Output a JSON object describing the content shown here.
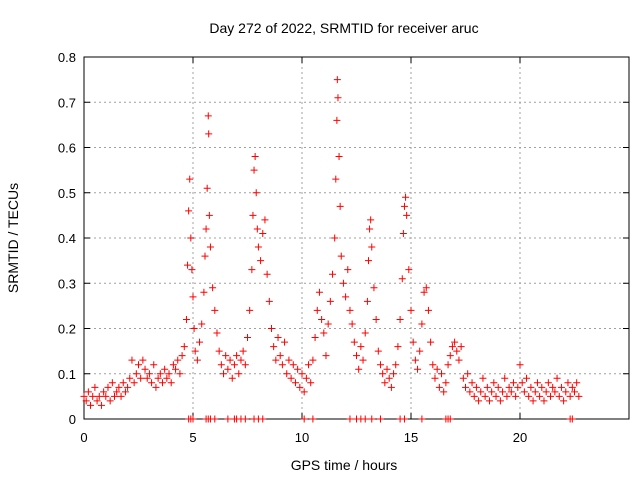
{
  "chart_data": {
    "type": "scatter",
    "title": "Day 272 of 2022, SRMTID for receiver aruc",
    "xlabel": "GPS time / hours",
    "ylabel": "SRMTID / TECUs",
    "xlim": [
      0,
      25
    ],
    "ylim": [
      0,
      0.8
    ],
    "xticks": [
      0,
      5,
      10,
      15,
      20
    ],
    "xtick_labels": [
      "0",
      "5",
      "10",
      "15",
      "20"
    ],
    "yticks": [
      0,
      0.1,
      0.2,
      0.3,
      0.4,
      0.5,
      0.6,
      0.7,
      0.8
    ],
    "ytick_labels": [
      "0",
      "0.1",
      "0.2",
      "0.3",
      "0.4",
      "0.5",
      "0.6",
      "0.7",
      "0.8"
    ],
    "grid": true,
    "marker": "plus",
    "color": "#ff0000",
    "series": [
      {
        "name": "SRMTID",
        "points": [
          [
            0.0,
            0.05
          ],
          [
            0.1,
            0.04
          ],
          [
            0.2,
            0.06
          ],
          [
            0.3,
            0.03
          ],
          [
            0.4,
            0.05
          ],
          [
            0.5,
            0.07
          ],
          [
            0.6,
            0.04
          ],
          [
            0.7,
            0.05
          ],
          [
            0.8,
            0.03
          ],
          [
            0.9,
            0.06
          ],
          [
            1.0,
            0.05
          ],
          [
            1.1,
            0.07
          ],
          [
            1.2,
            0.04
          ],
          [
            1.3,
            0.08
          ],
          [
            1.4,
            0.05
          ],
          [
            1.5,
            0.06
          ],
          [
            1.6,
            0.07
          ],
          [
            1.7,
            0.05
          ],
          [
            1.8,
            0.08
          ],
          [
            1.9,
            0.06
          ],
          [
            2.0,
            0.07
          ],
          [
            2.1,
            0.09
          ],
          [
            2.2,
            0.13
          ],
          [
            2.3,
            0.08
          ],
          [
            2.4,
            0.1
          ],
          [
            2.5,
            0.12
          ],
          [
            2.6,
            0.09
          ],
          [
            2.7,
            0.13
          ],
          [
            2.8,
            0.11
          ],
          [
            2.9,
            0.09
          ],
          [
            3.0,
            0.1
          ],
          [
            3.1,
            0.08
          ],
          [
            3.2,
            0.12
          ],
          [
            3.3,
            0.07
          ],
          [
            3.4,
            0.09
          ],
          [
            3.5,
            0.1
          ],
          [
            3.6,
            0.08
          ],
          [
            3.7,
            0.11
          ],
          [
            3.8,
            0.09
          ],
          [
            3.9,
            0.1
          ],
          [
            4.0,
            0.08
          ],
          [
            4.1,
            0.12
          ],
          [
            4.2,
            0.11
          ],
          [
            4.3,
            0.13
          ],
          [
            4.4,
            0.1
          ],
          [
            4.5,
            0.14
          ],
          [
            4.6,
            0.16
          ],
          [
            4.7,
            0.22
          ],
          [
            4.75,
            0.34
          ],
          [
            4.8,
            0.46
          ],
          [
            4.85,
            0.53
          ],
          [
            4.9,
            0.4
          ],
          [
            4.95,
            0.33
          ],
          [
            5.0,
            0.27
          ],
          [
            5.05,
            0.2
          ],
          [
            5.1,
            0.15
          ],
          [
            5.2,
            0.13
          ],
          [
            5.3,
            0.17
          ],
          [
            5.4,
            0.21
          ],
          [
            5.5,
            0.28
          ],
          [
            5.55,
            0.36
          ],
          [
            5.6,
            0.42
          ],
          [
            5.65,
            0.51
          ],
          [
            5.7,
            0.67
          ],
          [
            5.72,
            0.63
          ],
          [
            5.75,
            0.45
          ],
          [
            5.8,
            0.38
          ],
          [
            5.9,
            0.29
          ],
          [
            6.0,
            0.24
          ],
          [
            6.1,
            0.19
          ],
          [
            6.2,
            0.15
          ],
          [
            6.3,
            0.12
          ],
          [
            6.4,
            0.1
          ],
          [
            6.5,
            0.14
          ],
          [
            6.6,
            0.11
          ],
          [
            6.7,
            0.13
          ],
          [
            6.8,
            0.09
          ],
          [
            6.9,
            0.12
          ],
          [
            7.0,
            0.14
          ],
          [
            7.1,
            0.1
          ],
          [
            7.2,
            0.13
          ],
          [
            7.3,
            0.15
          ],
          [
            7.4,
            0.12
          ],
          [
            7.5,
            0.18
          ],
          [
            7.6,
            0.24
          ],
          [
            7.7,
            0.33
          ],
          [
            7.75,
            0.45
          ],
          [
            7.8,
            0.55
          ],
          [
            7.85,
            0.58
          ],
          [
            7.9,
            0.5
          ],
          [
            7.95,
            0.42
          ],
          [
            8.0,
            0.38
          ],
          [
            8.1,
            0.35
          ],
          [
            8.2,
            0.41
          ],
          [
            8.3,
            0.44
          ],
          [
            8.4,
            0.32
          ],
          [
            8.5,
            0.26
          ],
          [
            8.6,
            0.2
          ],
          [
            8.7,
            0.16
          ],
          [
            8.8,
            0.13
          ],
          [
            8.9,
            0.18
          ],
          [
            9.0,
            0.14
          ],
          [
            9.1,
            0.12
          ],
          [
            9.2,
            0.17
          ],
          [
            9.3,
            0.1
          ],
          [
            9.4,
            0.13
          ],
          [
            9.5,
            0.09
          ],
          [
            9.6,
            0.12
          ],
          [
            9.7,
            0.08
          ],
          [
            9.8,
            0.11
          ],
          [
            9.9,
            0.07
          ],
          [
            10.0,
            0.1
          ],
          [
            10.1,
            0.06
          ],
          [
            10.2,
            0.09
          ],
          [
            10.3,
            0.12
          ],
          [
            10.4,
            0.08
          ],
          [
            10.5,
            0.13
          ],
          [
            10.6,
            0.18
          ],
          [
            10.7,
            0.24
          ],
          [
            10.8,
            0.28
          ],
          [
            10.9,
            0.22
          ],
          [
            11.0,
            0.19
          ],
          [
            11.1,
            0.14
          ],
          [
            11.2,
            0.21
          ],
          [
            11.3,
            0.26
          ],
          [
            11.4,
            0.32
          ],
          [
            11.5,
            0.4
          ],
          [
            11.55,
            0.53
          ],
          [
            11.6,
            0.66
          ],
          [
            11.62,
            0.75
          ],
          [
            11.65,
            0.71
          ],
          [
            11.7,
            0.58
          ],
          [
            11.75,
            0.47
          ],
          [
            11.8,
            0.36
          ],
          [
            11.9,
            0.3
          ],
          [
            12.0,
            0.27
          ],
          [
            12.1,
            0.33
          ],
          [
            12.2,
            0.24
          ],
          [
            12.3,
            0.21
          ],
          [
            12.4,
            0.17
          ],
          [
            12.5,
            0.14
          ],
          [
            12.6,
            0.11
          ],
          [
            12.7,
            0.16
          ],
          [
            12.8,
            0.13
          ],
          [
            12.9,
            0.19
          ],
          [
            13.0,
            0.26
          ],
          [
            13.05,
            0.35
          ],
          [
            13.1,
            0.42
          ],
          [
            13.15,
            0.44
          ],
          [
            13.2,
            0.38
          ],
          [
            13.3,
            0.29
          ],
          [
            13.4,
            0.22
          ],
          [
            13.5,
            0.15
          ],
          [
            13.6,
            0.12
          ],
          [
            13.7,
            0.1
          ],
          [
            13.8,
            0.08
          ],
          [
            13.9,
            0.11
          ],
          [
            14.0,
            0.09
          ],
          [
            14.1,
            0.07
          ],
          [
            14.2,
            0.1
          ],
          [
            14.3,
            0.12
          ],
          [
            14.4,
            0.16
          ],
          [
            14.5,
            0.22
          ],
          [
            14.6,
            0.31
          ],
          [
            14.65,
            0.41
          ],
          [
            14.7,
            0.47
          ],
          [
            14.75,
            0.49
          ],
          [
            14.8,
            0.45
          ],
          [
            14.9,
            0.33
          ],
          [
            15.0,
            0.24
          ],
          [
            15.1,
            0.17
          ],
          [
            15.2,
            0.13
          ],
          [
            15.3,
            0.11
          ],
          [
            15.4,
            0.15
          ],
          [
            15.5,
            0.21
          ],
          [
            15.6,
            0.28
          ],
          [
            15.7,
            0.29
          ],
          [
            15.8,
            0.24
          ],
          [
            15.9,
            0.17
          ],
          [
            16.0,
            0.12
          ],
          [
            16.1,
            0.09
          ],
          [
            16.2,
            0.11
          ],
          [
            16.3,
            0.07
          ],
          [
            16.4,
            0.1
          ],
          [
            16.5,
            0.06
          ],
          [
            16.6,
            0.08
          ],
          [
            16.7,
            0.12
          ],
          [
            16.8,
            0.14
          ],
          [
            16.9,
            0.16
          ],
          [
            17.0,
            0.17
          ],
          [
            17.1,
            0.15
          ],
          [
            17.2,
            0.13
          ],
          [
            17.3,
            0.16
          ],
          [
            17.4,
            0.09
          ],
          [
            17.5,
            0.07
          ],
          [
            17.6,
            0.1
          ],
          [
            17.7,
            0.06
          ],
          [
            17.8,
            0.08
          ],
          [
            17.9,
            0.05
          ],
          [
            18.0,
            0.07
          ],
          [
            18.1,
            0.04
          ],
          [
            18.2,
            0.06
          ],
          [
            18.3,
            0.09
          ],
          [
            18.4,
            0.05
          ],
          [
            18.5,
            0.07
          ],
          [
            18.6,
            0.04
          ],
          [
            18.7,
            0.06
          ],
          [
            18.8,
            0.08
          ],
          [
            18.9,
            0.05
          ],
          [
            19.0,
            0.07
          ],
          [
            19.1,
            0.04
          ],
          [
            19.2,
            0.06
          ],
          [
            19.3,
            0.09
          ],
          [
            19.4,
            0.05
          ],
          [
            19.5,
            0.07
          ],
          [
            19.6,
            0.06
          ],
          [
            19.7,
            0.08
          ],
          [
            19.8,
            0.05
          ],
          [
            19.9,
            0.07
          ],
          [
            20.0,
            0.12
          ],
          [
            20.1,
            0.08
          ],
          [
            20.2,
            0.06
          ],
          [
            20.3,
            0.09
          ],
          [
            20.4,
            0.05
          ],
          [
            20.5,
            0.07
          ],
          [
            20.6,
            0.04
          ],
          [
            20.7,
            0.06
          ],
          [
            20.8,
            0.08
          ],
          [
            20.9,
            0.05
          ],
          [
            21.0,
            0.07
          ],
          [
            21.1,
            0.04
          ],
          [
            21.2,
            0.06
          ],
          [
            21.3,
            0.08
          ],
          [
            21.4,
            0.05
          ],
          [
            21.5,
            0.07
          ],
          [
            21.6,
            0.06
          ],
          [
            21.7,
            0.09
          ],
          [
            21.8,
            0.05
          ],
          [
            21.9,
            0.07
          ],
          [
            22.0,
            0.04
          ],
          [
            22.1,
            0.06
          ],
          [
            22.2,
            0.08
          ],
          [
            22.3,
            0.05
          ],
          [
            22.4,
            0.07
          ],
          [
            22.5,
            0.06
          ],
          [
            22.6,
            0.08
          ],
          [
            22.7,
            0.05
          ]
        ],
        "zero_points_x": [
          4.8,
          4.9,
          5.0,
          5.6,
          5.7,
          5.8,
          6.0,
          6.6,
          6.9,
          7.0,
          7.2,
          7.4,
          7.8,
          8.0,
          8.2,
          10.1,
          10.5,
          12.2,
          12.5,
          12.7,
          12.9,
          13.2,
          13.6,
          14.5,
          14.7,
          15.5,
          16.6,
          16.7,
          16.8,
          22.3,
          22.4
        ]
      }
    ]
  }
}
